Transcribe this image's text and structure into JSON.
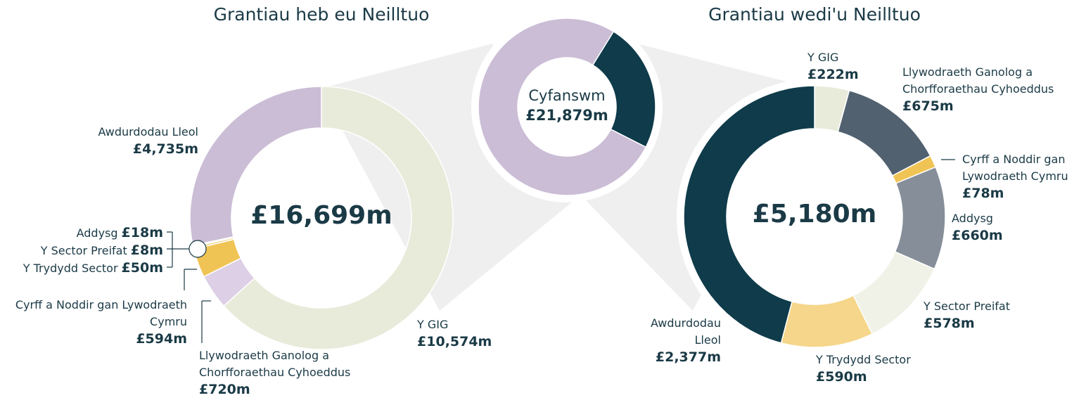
{
  "chart_data": [
    {
      "type": "pie",
      "title": "Grantiau heb eu Neilltuo",
      "center_label": "£16,699m",
      "categories": [
        "Y GIG",
        "Llywodraeth Ganolog a Chorfforaethau Cyhoeddus",
        "Cyrff a Noddir gan Lywodraeth Cymru",
        "Y Trydydd Sector",
        "Y Sector Preifat",
        "Addysg",
        "Awdurdodau Lleol"
      ],
      "values": [
        10574,
        720,
        594,
        50,
        8,
        18,
        4735
      ],
      "value_labels": [
        "£10,574m",
        "£720m",
        "£594m",
        "£50m",
        "£8m",
        "£18m",
        "£4,735m"
      ],
      "colors": [
        "#e8ebda",
        "#ddd0e6",
        "#f0c454",
        "#f5d68a",
        "#f1f2e7",
        "#ddd0e6",
        "#cbbdd6"
      ]
    },
    {
      "type": "pie",
      "center_title": "Cyfanswm",
      "center_label": "£21,879m",
      "categories": [
        null,
        null
      ],
      "values": [
        16699,
        5180
      ],
      "colors": [
        "#cbbdd6",
        "#0f3b4a"
      ]
    },
    {
      "type": "pie",
      "title": "Grantiau wedi'u Neilltuo",
      "center_label": "£5,180m",
      "categories": [
        "Y GIG",
        "Llywodraeth Ganolog a Chorfforaethau Cyhoeddus",
        "Cyrff a Noddir gan Lywodraeth Cymru",
        "Addysg",
        "Y Sector Preifat",
        "Y Trydydd Sector",
        "Awdurdodau Lleol"
      ],
      "values": [
        222,
        675,
        78,
        660,
        578,
        590,
        2377
      ],
      "value_labels": [
        "£222m",
        "£675m",
        "£78m",
        "£660m",
        "£578m",
        "£590m",
        "£2,377m"
      ],
      "colors": [
        "#e8ebda",
        "#526170",
        "#f0c454",
        "#858e99",
        "#f1f2e7",
        "#f5d68a",
        "#0f3b4a"
      ]
    }
  ]
}
